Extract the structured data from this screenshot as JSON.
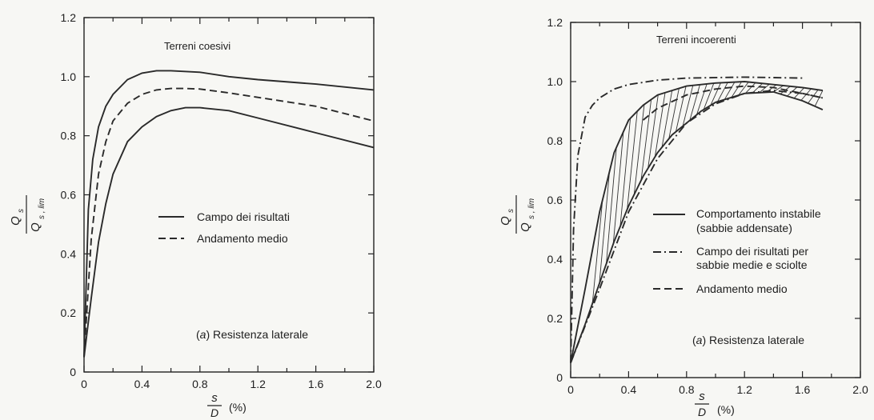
{
  "chart_data": [
    {
      "type": "line",
      "panel_title": "Terreni coesivi",
      "annotation": "(a) Resistenza laterale",
      "annotation_prefix": "(",
      "annotation_letter": "a",
      "annotation_suffix": ") Resistenza laterale",
      "ylabel_num": "Q",
      "ylabel_num_sub": "s",
      "ylabel_den": "Q",
      "ylabel_den_sub": "s , lim",
      "xlabel_num": "s",
      "xlabel_den": "D",
      "xlabel_unit": "(%)",
      "xlim": [
        0,
        2.0
      ],
      "ylim": [
        0,
        1.2
      ],
      "x_ticks": [
        "0",
        "0.4",
        "0.8",
        "1.2",
        "1.6",
        "2.0"
      ],
      "y_ticks": [
        "0",
        "0.2",
        "0.4",
        "0.6",
        "0.8",
        "1.0",
        "1.2"
      ],
      "legend_position": "center-right",
      "legend": [
        {
          "label": "Campo dei risultati",
          "style": "solid"
        },
        {
          "label": "Andamento medio",
          "style": "dashed"
        }
      ],
      "series": [
        {
          "style": "solid",
          "x": [
            0,
            0.03,
            0.06,
            0.1,
            0.15,
            0.2,
            0.3,
            0.4,
            0.5,
            0.6,
            0.8,
            1.0,
            1.2,
            1.6,
            2.0
          ],
          "y": [
            0.05,
            0.55,
            0.72,
            0.83,
            0.9,
            0.94,
            0.99,
            1.012,
            1.02,
            1.02,
            1.015,
            1.0,
            0.99,
            0.975,
            0.955
          ]
        },
        {
          "style": "dashed",
          "x": [
            0,
            0.05,
            0.1,
            0.15,
            0.2,
            0.3,
            0.4,
            0.5,
            0.6,
            0.7,
            0.8,
            1.0,
            1.2,
            1.6,
            2.0
          ],
          "y": [
            0.05,
            0.45,
            0.67,
            0.78,
            0.85,
            0.91,
            0.94,
            0.955,
            0.96,
            0.96,
            0.958,
            0.945,
            0.93,
            0.9,
            0.85
          ]
        },
        {
          "style": "solid",
          "x": [
            0,
            0.05,
            0.1,
            0.15,
            0.2,
            0.3,
            0.4,
            0.5,
            0.6,
            0.7,
            0.8,
            1.0,
            1.2,
            1.6,
            2.0
          ],
          "y": [
            0.05,
            0.25,
            0.44,
            0.57,
            0.67,
            0.78,
            0.83,
            0.865,
            0.885,
            0.895,
            0.895,
            0.885,
            0.86,
            0.81,
            0.76
          ]
        }
      ]
    },
    {
      "type": "line",
      "panel_title": "Terreni incoerenti",
      "annotation": "(a) Resistenza laterale",
      "annotation_prefix": "(",
      "annotation_letter": "a",
      "annotation_suffix": ") Resistenza laterale",
      "ylabel_num": "Q",
      "ylabel_num_sub": "s",
      "ylabel_den": "Q",
      "ylabel_den_sub": "s , lim",
      "xlabel_num": "s",
      "xlabel_den": "D",
      "xlabel_unit": "(%)",
      "xlim": [
        0,
        2.0
      ],
      "ylim": [
        0,
        1.2
      ],
      "x_ticks": [
        "0",
        "0.4",
        "0.8",
        "1.2",
        "1.6",
        "2.0"
      ],
      "y_ticks": [
        "0",
        "0.2",
        "0.4",
        "0.6",
        "0.8",
        "1.0",
        "1.2"
      ],
      "legend_position": "center-right",
      "legend": [
        {
          "label": "Comportamento instabile",
          "label2": "(sabbie addensate)",
          "style": "solid"
        },
        {
          "label": "Campo dei risultati per",
          "label2": "sabbie medie e sciolte",
          "style": "dashdot"
        },
        {
          "label": "Andamento medio",
          "style": "dashed"
        }
      ],
      "series": [
        {
          "style": "dashdot",
          "x": [
            0,
            0.02,
            0.05,
            0.1,
            0.15,
            0.2,
            0.3,
            0.4,
            0.6,
            0.8,
            1.2,
            1.6
          ],
          "y": [
            0.05,
            0.5,
            0.75,
            0.88,
            0.92,
            0.945,
            0.975,
            0.99,
            1.005,
            1.012,
            1.015,
            1.012
          ]
        },
        {
          "style": "solid",
          "x": [
            0,
            0.1,
            0.2,
            0.3,
            0.4,
            0.5,
            0.6,
            0.7,
            0.8,
            0.9,
            1.0,
            1.2,
            1.4,
            1.6,
            1.74
          ],
          "y": [
            0.05,
            0.3,
            0.56,
            0.76,
            0.87,
            0.92,
            0.955,
            0.97,
            0.985,
            0.99,
            0.995,
            1.0,
            0.99,
            0.98,
            0.97
          ]
        },
        {
          "style": "dashed",
          "x": [
            0.5,
            0.6,
            0.8,
            1.0,
            1.2,
            1.4,
            1.6,
            1.74
          ],
          "y": [
            0.87,
            0.91,
            0.955,
            0.975,
            0.985,
            0.98,
            0.96,
            0.945
          ]
        },
        {
          "style": "solid",
          "x": [
            0,
            0.1,
            0.2,
            0.3,
            0.4,
            0.5,
            0.6,
            0.7,
            0.8,
            0.9,
            1.0,
            1.2,
            1.4,
            1.6,
            1.74
          ],
          "y": [
            0.05,
            0.18,
            0.32,
            0.46,
            0.58,
            0.68,
            0.76,
            0.82,
            0.86,
            0.9,
            0.93,
            0.96,
            0.965,
            0.935,
            0.905
          ]
        },
        {
          "style": "dashdot",
          "x": [
            0,
            0.2,
            0.4,
            0.6,
            0.8,
            1.0,
            1.2,
            1.4,
            1.6,
            1.74
          ],
          "y": [
            0.05,
            0.3,
            0.56,
            0.74,
            0.86,
            0.925,
            0.96,
            0.97,
            0.96,
            0.945
          ]
        }
      ]
    }
  ]
}
